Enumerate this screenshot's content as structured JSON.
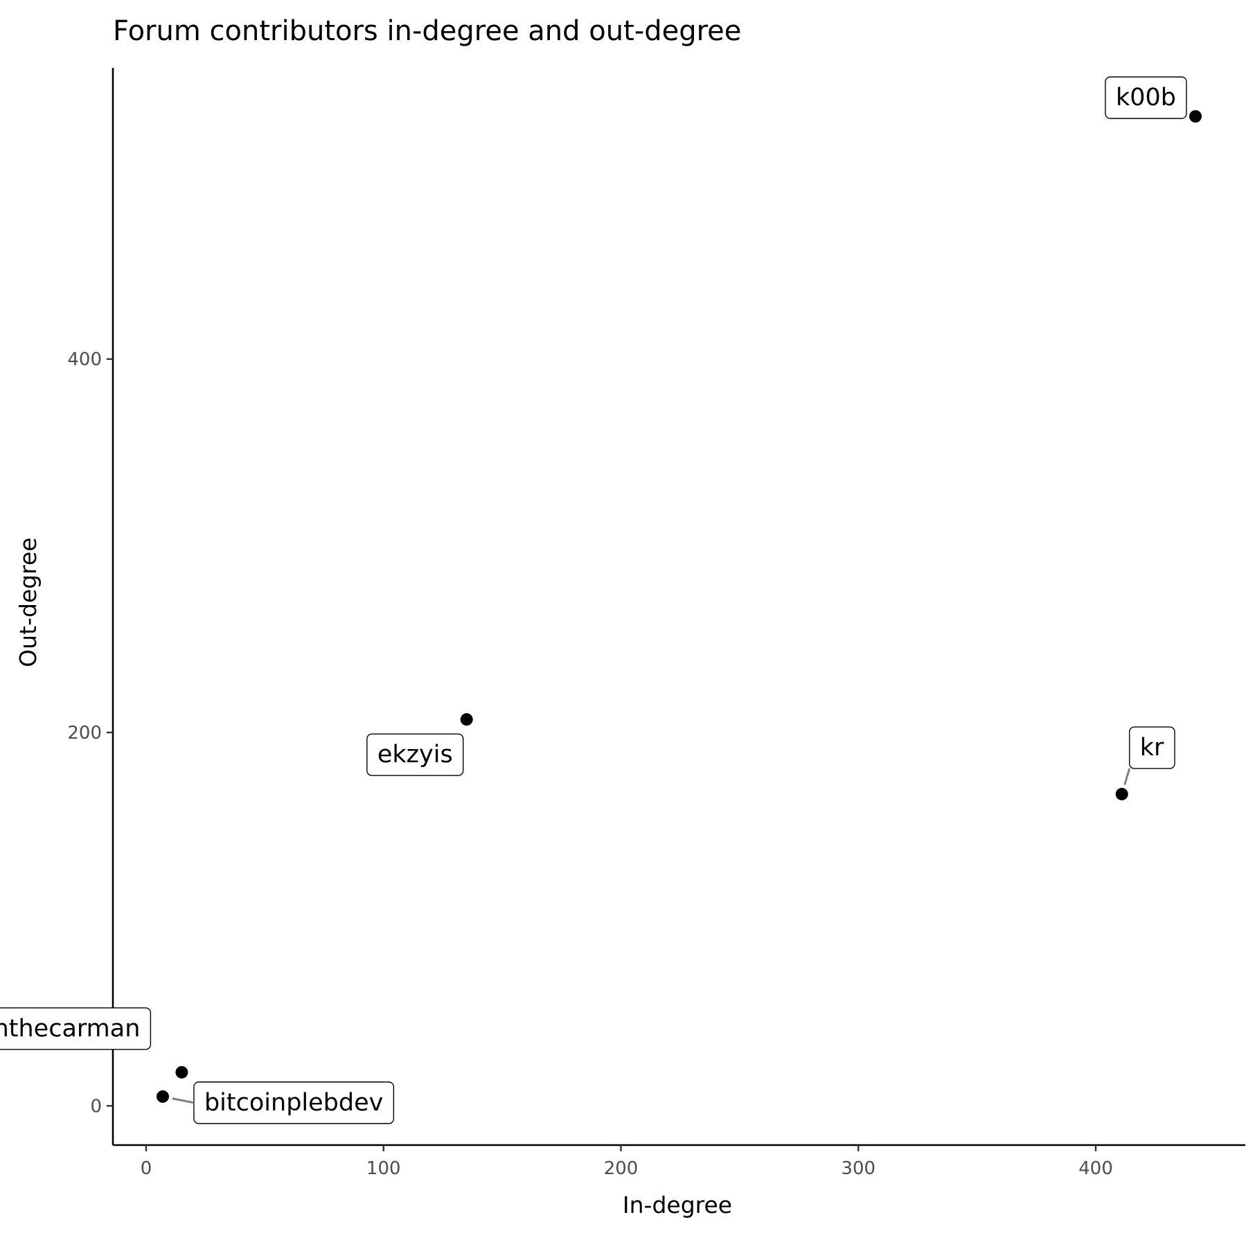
{
  "chart_data": {
    "type": "scatter",
    "title": "Forum contributors in-degree and out-degree",
    "xlabel": "In-degree",
    "ylabel": "Out-degree",
    "xlim": [
      -14,
      463
    ],
    "ylim": [
      -21,
      556
    ],
    "x_ticks": [
      0,
      100,
      200,
      300,
      400
    ],
    "y_ticks": [
      0,
      200,
      400
    ],
    "grid": false,
    "legend": "none",
    "point_color": "#000000",
    "points": [
      {
        "label": "k00b",
        "x": 442,
        "y": 530,
        "label_side": "upper-left"
      },
      {
        "label": "kr",
        "x": 411,
        "y": 167,
        "label_side": "upper-right"
      },
      {
        "label": "ekzyis",
        "x": 135,
        "y": 207,
        "label_side": "lower-left"
      },
      {
        "label": "benthecarman",
        "x": 15,
        "y": 18,
        "label_side": "upper-left"
      },
      {
        "label": "bitcoinplebdev",
        "x": 7,
        "y": 5,
        "label_side": "lower-right"
      }
    ]
  }
}
